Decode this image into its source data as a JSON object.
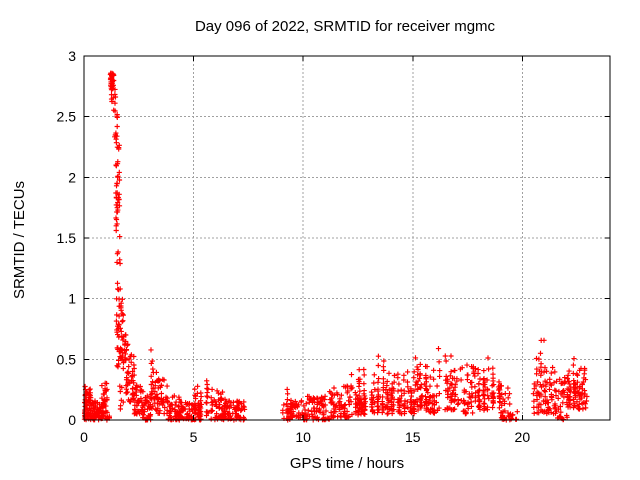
{
  "page": {
    "background_color": "#ffffff",
    "kind": "gnuplot-style static plot image"
  },
  "chart_data": {
    "type": "scatter",
    "title": "Day 096 of 2022, SRMTID for receiver mgmc",
    "xlabel": "GPS time / hours",
    "ylabel": "SRMTID / TECUs",
    "xlim": [
      0,
      24
    ],
    "ylim": [
      0,
      3
    ],
    "xticks": [
      [
        0,
        "0"
      ],
      [
        5,
        "5"
      ],
      [
        10,
        "10"
      ],
      [
        15,
        "15"
      ],
      [
        20,
        "20"
      ]
    ],
    "yticks": [
      [
        0,
        "0"
      ],
      [
        0.5,
        "0.5"
      ],
      [
        1,
        "1"
      ],
      [
        1.5,
        "1.5"
      ],
      [
        2,
        "2"
      ],
      [
        2.5,
        "2.5"
      ],
      [
        3,
        "3"
      ]
    ],
    "grid": true,
    "grid_style": "dashed",
    "legend": "none",
    "marker": "plus",
    "marker_color": "#ff0000",
    "axis_color": "#000000",
    "grid_color": "#a0a0a0",
    "peak": {
      "time_hours": 1.3,
      "value_tecus": 2.85
    },
    "data_gaps_hours": [
      [
        7.35,
        9.05
      ],
      [
        19.8,
        20.5
      ]
    ],
    "clusters_format": [
      "t_start_h",
      "t_end_h",
      "v_min_tecus",
      "v_max_tecus",
      "n_points",
      "bottom_bias_exponent",
      "columnar_mode"
    ],
    "clusters": [
      [
        0.0,
        0.38,
        0.0,
        0.28,
        60,
        1.6,
        0
      ],
      [
        0.38,
        0.8,
        0.0,
        0.16,
        55,
        1.4,
        0
      ],
      [
        0.8,
        1.08,
        0.0,
        0.32,
        40,
        1.3,
        0
      ],
      [
        1.02,
        1.2,
        0.0,
        0.04,
        5,
        1,
        0
      ],
      [
        1.2,
        1.42,
        2.72,
        2.86,
        30,
        1,
        0
      ],
      [
        1.25,
        1.45,
        2.55,
        2.72,
        8,
        1,
        0
      ],
      [
        1.36,
        1.52,
        2.28,
        2.58,
        12,
        1,
        0
      ],
      [
        1.45,
        1.62,
        2.05,
        2.28,
        8,
        1,
        0
      ],
      [
        1.48,
        1.62,
        1.88,
        2.05,
        7,
        1,
        0
      ],
      [
        1.42,
        1.62,
        1.52,
        1.88,
        20,
        1,
        0
      ],
      [
        1.48,
        1.68,
        1.0,
        1.52,
        10,
        1,
        0
      ],
      [
        1.45,
        1.8,
        0.72,
        1.0,
        26,
        1,
        0
      ],
      [
        1.5,
        2.0,
        0.42,
        0.72,
        40,
        1.1,
        0
      ],
      [
        1.5,
        1.8,
        0.05,
        0.28,
        7,
        1,
        0
      ],
      [
        1.9,
        2.3,
        0.15,
        0.55,
        42,
        1.4,
        0
      ],
      [
        2.3,
        2.7,
        0.05,
        0.3,
        38,
        1.4,
        0
      ],
      [
        2.65,
        3.05,
        0.0,
        0.2,
        38,
        1.4,
        0
      ],
      [
        3.05,
        3.4,
        0.08,
        0.63,
        32,
        1.8,
        1
      ],
      [
        3.35,
        3.8,
        0.05,
        0.36,
        34,
        1.4,
        0
      ],
      [
        3.8,
        4.35,
        0.0,
        0.2,
        40,
        1.5,
        0
      ],
      [
        4.3,
        5.1,
        0.0,
        0.15,
        55,
        1.3,
        0
      ],
      [
        5.05,
        5.85,
        0.0,
        0.42,
        60,
        1.9,
        1
      ],
      [
        5.8,
        6.45,
        0.0,
        0.26,
        50,
        1.5,
        0
      ],
      [
        6.4,
        7.35,
        0.0,
        0.16,
        65,
        1.3,
        0
      ],
      [
        9.05,
        9.45,
        0.0,
        0.31,
        28,
        1.5,
        1
      ],
      [
        9.4,
        10.2,
        0.0,
        0.16,
        55,
        1.3,
        0
      ],
      [
        10.2,
        11.2,
        0.0,
        0.2,
        65,
        1.3,
        0
      ],
      [
        11.2,
        12.2,
        0.02,
        0.28,
        65,
        1.4,
        0
      ],
      [
        12.2,
        13.0,
        0.04,
        0.45,
        58,
        1.5,
        1
      ],
      [
        13.0,
        13.7,
        0.05,
        0.56,
        52,
        1.6,
        1
      ],
      [
        13.7,
        14.4,
        0.05,
        0.56,
        52,
        1.6,
        1
      ],
      [
        14.4,
        15.1,
        0.05,
        0.48,
        48,
        1.5,
        1
      ],
      [
        15.1,
        15.6,
        0.08,
        0.61,
        42,
        1.5,
        1
      ],
      [
        15.6,
        16.2,
        0.05,
        0.5,
        42,
        1.5,
        1
      ],
      [
        16.2,
        17.0,
        0.08,
        0.68,
        52,
        1.6,
        1
      ],
      [
        17.0,
        17.9,
        0.05,
        0.46,
        52,
        1.4,
        0
      ],
      [
        17.9,
        18.6,
        0.08,
        0.56,
        46,
        1.5,
        1
      ],
      [
        18.55,
        19.0,
        0.1,
        0.63,
        32,
        1.4,
        1
      ],
      [
        19.0,
        19.45,
        0.0,
        0.3,
        30,
        1.4,
        0
      ],
      [
        19.45,
        19.8,
        0.0,
        0.1,
        8,
        1.2,
        0
      ],
      [
        20.5,
        21.05,
        0.05,
        0.73,
        48,
        1.2,
        1
      ],
      [
        21.0,
        21.55,
        0.05,
        0.46,
        38,
        1.4,
        0
      ],
      [
        21.55,
        22.05,
        0.0,
        0.36,
        32,
        1.3,
        0
      ],
      [
        22.0,
        22.35,
        0.1,
        0.56,
        32,
        1.3,
        1
      ],
      [
        22.3,
        22.95,
        0.08,
        0.43,
        58,
        1.2,
        0
      ]
    ]
  }
}
